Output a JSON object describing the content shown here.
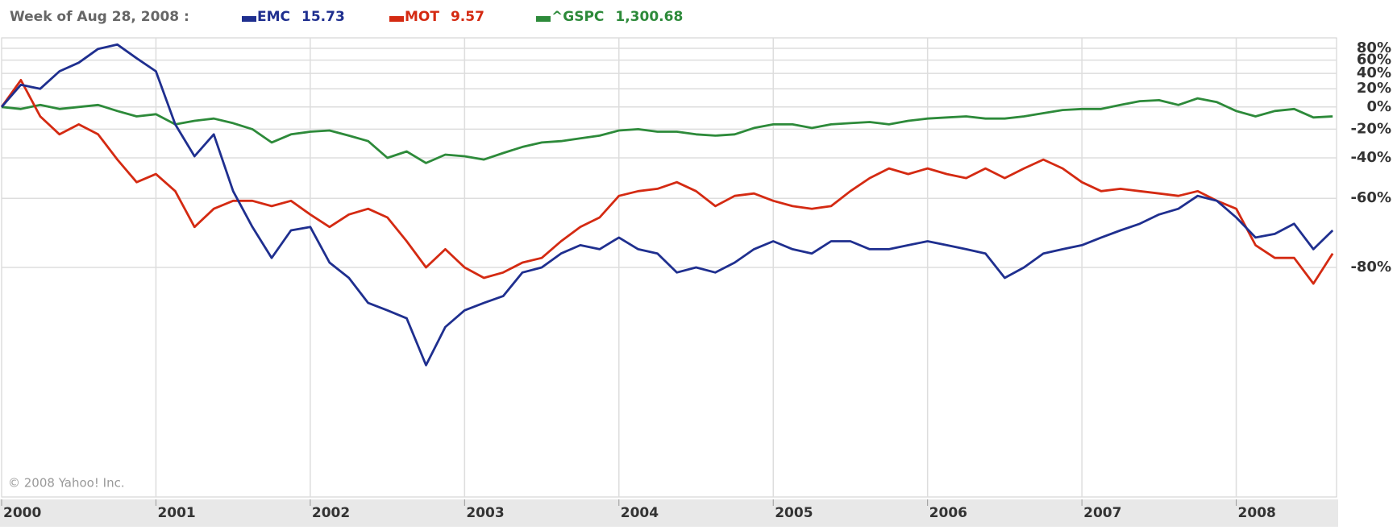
{
  "chart_data": {
    "type": "line",
    "subtitle": "Week of Aug 28, 2008 :",
    "annotation": "© 2008 Yahoo! Inc.",
    "log_scale": true,
    "grid": true,
    "xlim": [
      2000,
      2008.65
    ],
    "xticks": [
      2000,
      2001,
      2002,
      2003,
      2004,
      2005,
      2006,
      2007,
      2008
    ],
    "ylim": [
      -98,
      100
    ],
    "yticks": [
      {
        "value": 80,
        "label": "80%"
      },
      {
        "value": 60,
        "label": "60%"
      },
      {
        "value": 40,
        "label": "40%"
      },
      {
        "value": 20,
        "label": "20%"
      },
      {
        "value": 0,
        "label": "0%"
      },
      {
        "value": -20,
        "label": "-20%"
      },
      {
        "value": -40,
        "label": "-40%"
      },
      {
        "value": -60,
        "label": "-60%"
      },
      {
        "value": -80,
        "label": "-80%"
      }
    ],
    "x": [
      2000,
      2000.125,
      2000.25,
      2000.375,
      2000.5,
      2000.625,
      2000.75,
      2000.875,
      2001,
      2001.125,
      2001.25,
      2001.375,
      2001.5,
      2001.625,
      2001.75,
      2001.875,
      2002,
      2002.125,
      2002.25,
      2002.375,
      2002.5,
      2002.625,
      2002.75,
      2002.875,
      2003,
      2003.125,
      2003.25,
      2003.375,
      2003.5,
      2003.625,
      2003.75,
      2003.875,
      2004,
      2004.125,
      2004.25,
      2004.375,
      2004.5,
      2004.625,
      2004.75,
      2004.875,
      2005,
      2005.125,
      2005.25,
      2005.375,
      2005.5,
      2005.625,
      2005.75,
      2005.875,
      2006,
      2006.125,
      2006.25,
      2006.375,
      2006.5,
      2006.625,
      2006.75,
      2006.875,
      2007,
      2007.125,
      2007.25,
      2007.375,
      2007.5,
      2007.625,
      2007.75,
      2007.875,
      2008,
      2008.125,
      2008.25,
      2008.375,
      2008.5,
      2008.625
    ],
    "series": [
      {
        "name": "EMC",
        "quote": 15.73,
        "color": "#1f2f8f",
        "values": [
          0,
          25,
          20,
          43,
          56,
          79,
          87,
          63,
          43,
          -16,
          -39,
          -24,
          -57,
          -70,
          -78,
          -71,
          -70,
          -79,
          -82,
          -86,
          -87,
          -88,
          -92.5,
          -89,
          -87,
          -86,
          -85,
          -81,
          -80,
          -77,
          -75,
          -76,
          -73,
          -76,
          -77,
          -81,
          -80,
          -81,
          -79,
          -76,
          -74,
          -76,
          -77,
          -74,
          -74,
          -76,
          -76,
          -75,
          -74,
          -75,
          -76,
          -77,
          -82,
          -80,
          -77,
          -76,
          -75,
          -73,
          -71,
          -69,
          -66,
          -64,
          -59,
          -61,
          -67,
          -73,
          -72,
          -69,
          -76,
          -71
        ]
      },
      {
        "name": "MOT",
        "quote": 9.57,
        "color": "#d42a12",
        "values": [
          0,
          31,
          -9,
          -24,
          -16,
          -24,
          -41,
          -53,
          -49,
          -57,
          -70,
          -64,
          -61,
          -61,
          -63,
          -61,
          -66,
          -70,
          -66,
          -64,
          -67,
          -74,
          -80,
          -76,
          -80,
          -82,
          -81,
          -79,
          -78,
          -74,
          -70,
          -67,
          -59,
          -57,
          -56,
          -53,
          -57,
          -63,
          -59,
          -58,
          -61,
          -63,
          -64,
          -63,
          -57,
          -51,
          -46,
          -49,
          -46,
          -49,
          -51,
          -46,
          -51,
          -46,
          -41,
          -46,
          -53,
          -57,
          -56,
          -57,
          -58,
          -59,
          -57,
          -61,
          -64,
          -75,
          -78,
          -78,
          -83,
          -77
        ]
      },
      {
        "name": "^GSPC",
        "quote": 1300.68,
        "quote_label": "1,300.68",
        "color": "#2d8a3a",
        "values": [
          0,
          -2,
          2,
          -2,
          0,
          2,
          -4,
          -9,
          -7,
          -16,
          -13,
          -11,
          -15,
          -20,
          -30,
          -24,
          -22,
          -21,
          -25,
          -29,
          -40,
          -36,
          -43,
          -38,
          -39,
          -41,
          -37,
          -33,
          -30,
          -29,
          -27,
          -25,
          -21,
          -20,
          -22,
          -22,
          -24,
          -25,
          -24,
          -19,
          -16,
          -16,
          -19,
          -16,
          -15,
          -14,
          -16,
          -13,
          -11,
          -10,
          -9,
          -11,
          -11,
          -9,
          -6,
          -3,
          -2,
          -2,
          2,
          6,
          7,
          2,
          9,
          5,
          -4,
          -9,
          -4,
          -2,
          -10,
          -9
        ]
      }
    ]
  }
}
